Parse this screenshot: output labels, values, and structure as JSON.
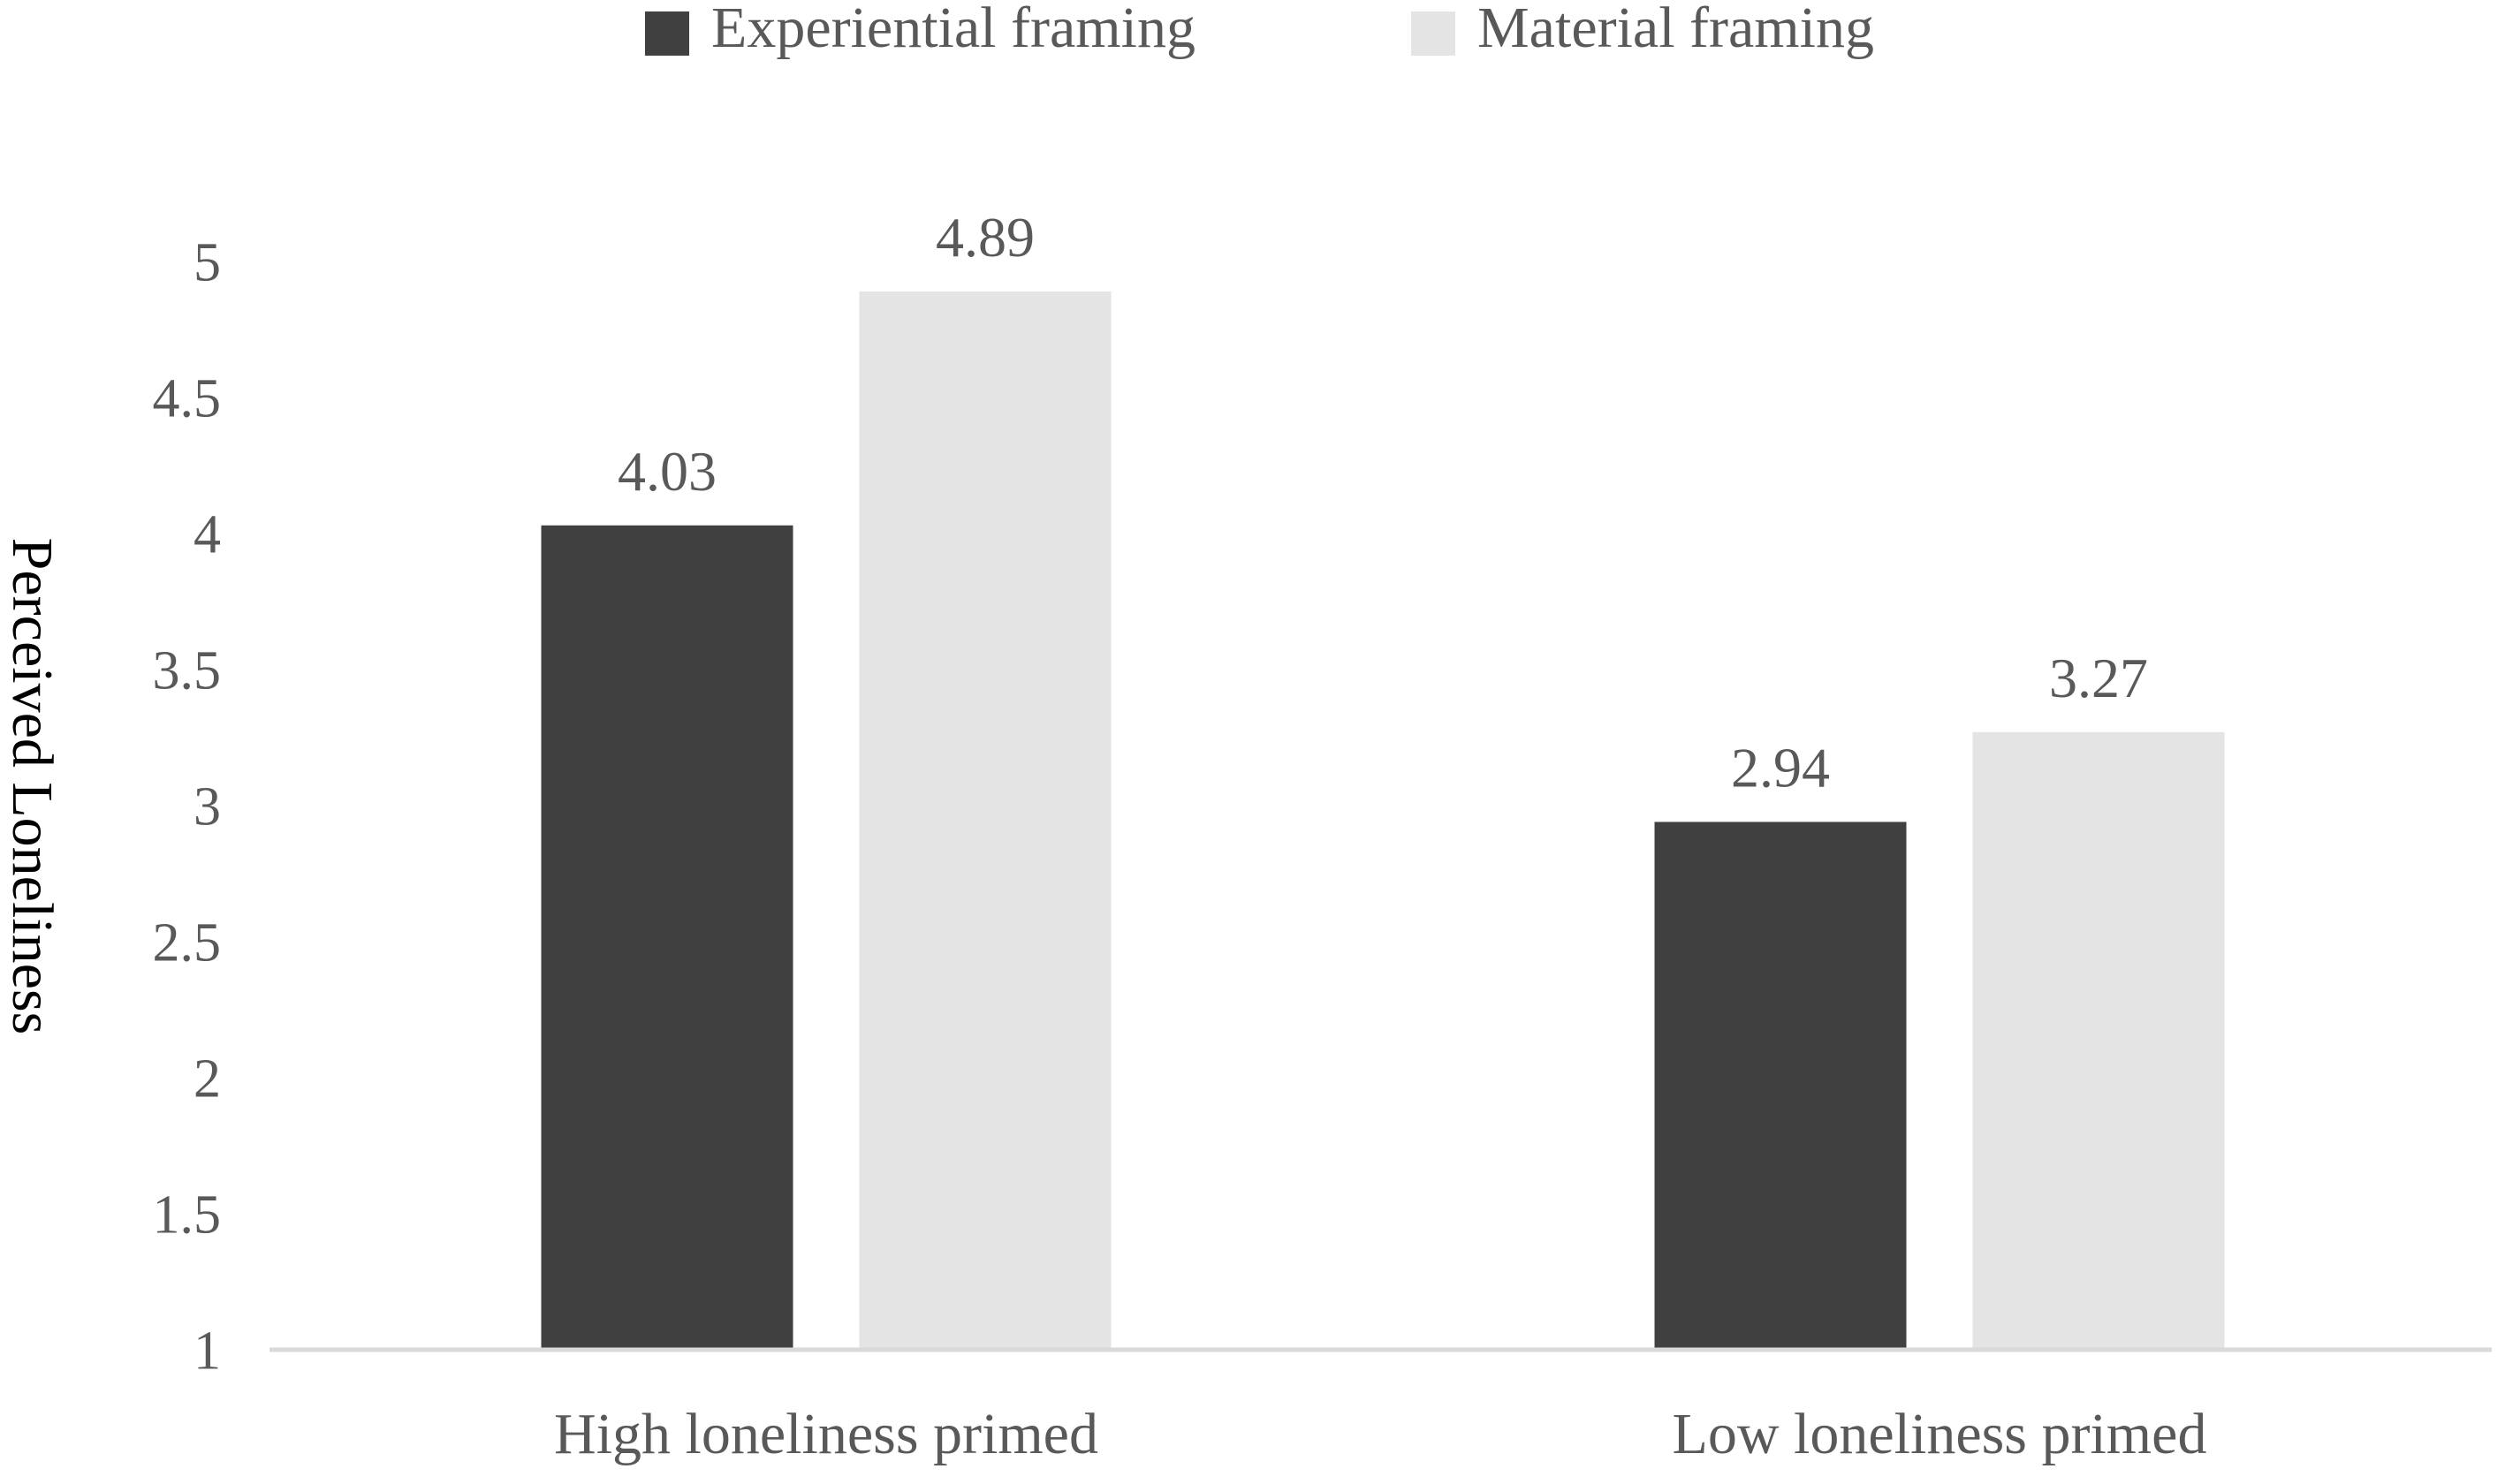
{
  "chart_data": {
    "type": "bar",
    "title": "",
    "xlabel": "",
    "ylabel": "Perceived Loneliness",
    "ylim": [
      1,
      5
    ],
    "yticks": [
      "1",
      "1.5",
      "2",
      "2.5",
      "3",
      "3.5",
      "4",
      "4.5",
      "5"
    ],
    "grid": false,
    "legend_position": "top-center",
    "categories": [
      "High loneliness primed",
      "Low loneliness primed"
    ],
    "series": [
      {
        "name": "Experiential framing",
        "color": "#404040",
        "values": [
          4.03,
          2.94
        ],
        "labels": [
          "4.03",
          "2.94"
        ]
      },
      {
        "name": "Material framing",
        "color": "#e4e4e4",
        "values": [
          4.89,
          3.27
        ],
        "labels": [
          "4.89",
          "3.27"
        ]
      }
    ]
  }
}
